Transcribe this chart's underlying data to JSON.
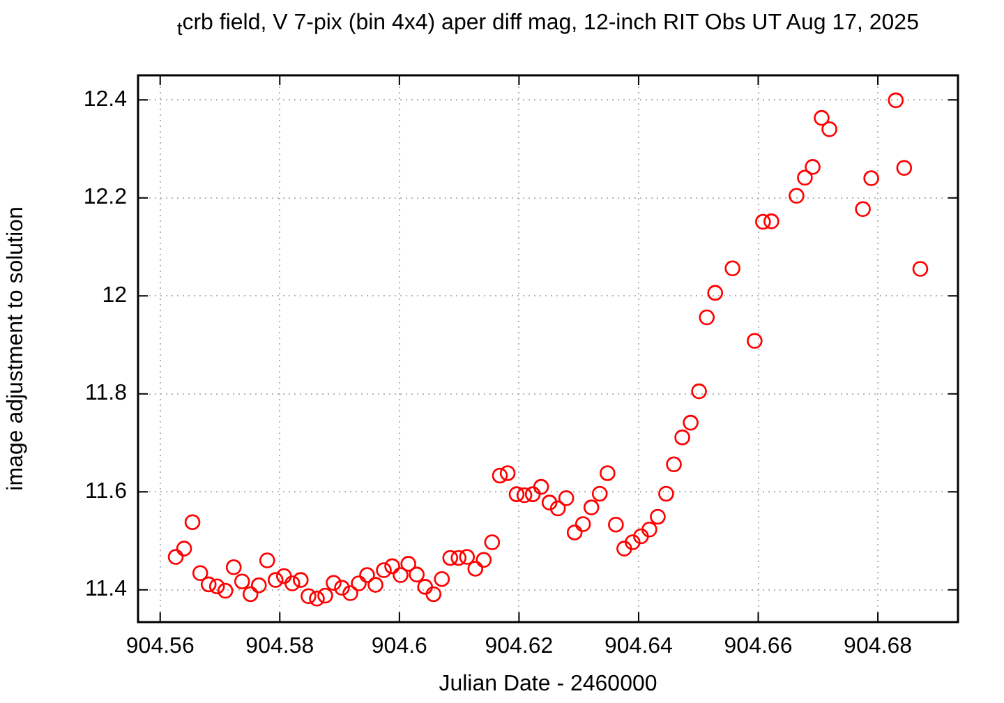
{
  "chart_data": {
    "type": "scatter",
    "title": "$_{t}$crb field, V 7-pix (bin 4x4) aper diff mag,  12-inch RIT Obs UT Aug 17, 2025",
    "xlabel": "Julian Date - 2460000",
    "ylabel": "image adjustment to solution",
    "x": [
      904.5626,
      904.564,
      904.5654,
      904.5667,
      904.5681,
      904.5695,
      904.5709,
      904.5723,
      904.5737,
      904.5751,
      904.5765,
      904.5779,
      904.5793,
      904.5807,
      904.5821,
      904.5835,
      904.5848,
      904.5862,
      904.5876,
      904.589,
      904.5904,
      904.5918,
      904.5932,
      904.5946,
      904.596,
      904.5974,
      904.5988,
      904.6002,
      904.6015,
      904.6029,
      904.6043,
      904.6057,
      904.6071,
      904.6085,
      904.6099,
      904.6113,
      904.6127,
      904.6141,
      904.6155,
      904.6168,
      904.6181,
      904.6196,
      904.6209,
      904.6223,
      904.6237,
      904.6251,
      904.6265,
      904.6279,
      904.6293,
      904.6307,
      904.6321,
      904.6335,
      904.6348,
      904.6362,
      904.6376,
      904.639,
      904.6404,
      904.6418,
      904.6432,
      904.6446,
      904.6459,
      904.6473,
      904.6487,
      904.6501,
      904.6514,
      904.6528,
      904.6557,
      904.6594,
      904.6608,
      904.6622,
      904.6664,
      904.6678,
      904.6691,
      904.6706,
      904.6719,
      904.6775,
      904.6789,
      904.683,
      904.6844,
      904.6871
    ],
    "series": [
      {
        "color": "#ff0000",
        "values": [
          11.467,
          11.484,
          11.538,
          11.434,
          11.411,
          11.407,
          11.398,
          11.446,
          11.417,
          11.391,
          11.409,
          11.46,
          11.42,
          11.428,
          11.413,
          11.42,
          11.387,
          11.382,
          11.388,
          11.414,
          11.404,
          11.393,
          11.413,
          11.43,
          11.41,
          11.44,
          11.448,
          11.43,
          11.453,
          11.431,
          11.406,
          11.391,
          11.422,
          11.465,
          11.465,
          11.467,
          11.443,
          11.461,
          11.497,
          11.633,
          11.638,
          11.595,
          11.593,
          11.595,
          11.61,
          11.578,
          11.566,
          11.587,
          11.517,
          11.534,
          11.568,
          11.596,
          11.638,
          11.533,
          11.484,
          11.497,
          11.509,
          11.523,
          11.549,
          11.596,
          11.656,
          11.711,
          11.741,
          11.805,
          11.956,
          12.006,
          12.056,
          11.908,
          12.151,
          12.152,
          12.204,
          12.241,
          12.263,
          12.363,
          12.34,
          12.177,
          12.24,
          12.399,
          12.261,
          12.055
        ]
      }
    ],
    "xlim": [
      904.5563,
      904.6934
    ],
    "xticks": [
      904.56,
      904.58,
      904.6,
      904.62,
      904.64,
      904.66,
      904.68
    ],
    "ylim": [
      11.334,
      12.45
    ],
    "yticks": [
      11.4,
      11.6,
      11.8,
      12,
      12.2,
      12.4
    ],
    "grid": true,
    "legend": false,
    "marker": "circle"
  }
}
